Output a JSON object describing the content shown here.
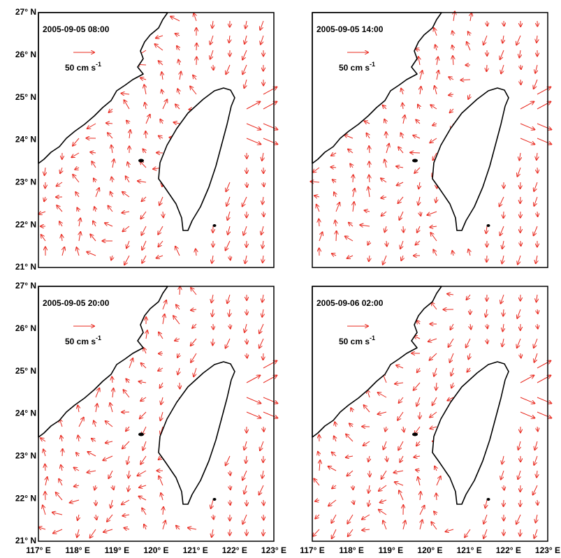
{
  "panels": [
    {
      "timestamp": "2005-09-05 08:00",
      "scale_label": "50 cm s",
      "scale_exponent": "-1"
    },
    {
      "timestamp": "2005-09-05 14:00",
      "scale_label": "50 cm s",
      "scale_exponent": "-1"
    },
    {
      "timestamp": "2005-09-05 20:00",
      "scale_label": "50 cm s",
      "scale_exponent": "-1"
    },
    {
      "timestamp": "2005-09-06 02:00",
      "scale_label": "50 cm s",
      "scale_exponent": "-1"
    }
  ],
  "y_axis": {
    "labels": [
      "27° N",
      "26° N",
      "25° N",
      "24° N",
      "23° N",
      "22° N",
      "21° N"
    ]
  },
  "x_axis": {
    "labels": [
      "117° E",
      "118° E",
      "119° E",
      "120° E",
      "121° E",
      "122° E",
      "123° E"
    ]
  }
}
